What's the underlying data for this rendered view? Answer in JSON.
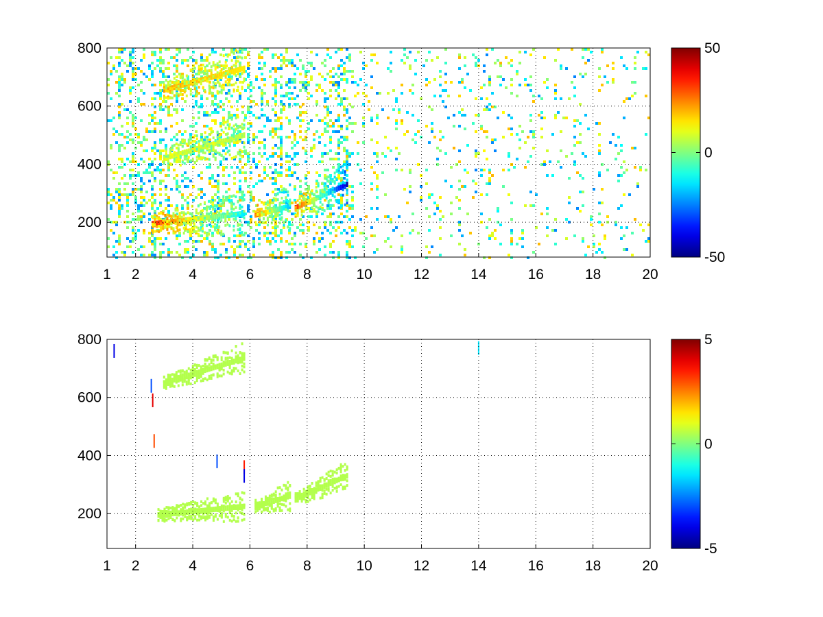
{
  "figure": {
    "background": "#ffffff"
  },
  "chart_data": [
    {
      "type": "heatmap",
      "title": "",
      "xlabel": "",
      "ylabel": "",
      "xlim": [
        1,
        20
      ],
      "ylim": [
        80,
        800
      ],
      "grid": true,
      "x_ticks": [
        {
          "value": 1,
          "label": "1"
        },
        {
          "value": 2,
          "label": "2"
        },
        {
          "value": 4,
          "label": "4"
        },
        {
          "value": 6,
          "label": "6"
        },
        {
          "value": 8,
          "label": "8"
        },
        {
          "value": 10,
          "label": "10"
        },
        {
          "value": 12,
          "label": "12"
        },
        {
          "value": 14,
          "label": "14"
        },
        {
          "value": 16,
          "label": "16"
        },
        {
          "value": 18,
          "label": "18"
        },
        {
          "value": 20,
          "label": "20"
        }
      ],
      "y_ticks": [
        {
          "value": 200,
          "label": "200"
        },
        {
          "value": 400,
          "label": "400"
        },
        {
          "value": 600,
          "label": "600"
        },
        {
          "value": 800,
          "label": "800"
        }
      ],
      "colorbar": {
        "colormap": "jet",
        "min": -50,
        "max": 50,
        "ticks": [
          {
            "value": 50,
            "label": "50"
          },
          {
            "value": 0,
            "label": "0"
          },
          {
            "value": -50,
            "label": "-50"
          }
        ]
      },
      "ridges": [
        {
          "x_start": 2.6,
          "x_end": 5.8,
          "y_start": 195,
          "y_end": 230,
          "value_start": 35,
          "value_end": -15
        },
        {
          "x_start": 6.2,
          "x_end": 7.4,
          "y_start": 225,
          "y_end": 255,
          "value_start": 30,
          "value_end": -20
        },
        {
          "x_start": 7.6,
          "x_end": 9.4,
          "y_start": 250,
          "y_end": 330,
          "value_start": 35,
          "value_end": -45
        },
        {
          "x_start": 3.0,
          "x_end": 5.8,
          "y_start": 655,
          "y_end": 730,
          "value_start": 22,
          "value_end": 14
        },
        {
          "x_start": 3.0,
          "x_end": 5.8,
          "y_start": 420,
          "y_end": 500,
          "value_start": 10,
          "value_end": 6
        }
      ],
      "background_noise": {
        "x_range": [
          1,
          20
        ],
        "density_low_x": 0.45,
        "density_high_x": 0.12,
        "value_range": [
          -25,
          20
        ]
      }
    },
    {
      "type": "heatmap",
      "title": "",
      "xlabel": "",
      "ylabel": "",
      "xlim": [
        1,
        20
      ],
      "ylim": [
        80,
        800
      ],
      "grid": true,
      "x_ticks": [
        {
          "value": 1,
          "label": "1"
        },
        {
          "value": 2,
          "label": "2"
        },
        {
          "value": 4,
          "label": "4"
        },
        {
          "value": 6,
          "label": "6"
        },
        {
          "value": 8,
          "label": "8"
        },
        {
          "value": 10,
          "label": "10"
        },
        {
          "value": 12,
          "label": "12"
        },
        {
          "value": 14,
          "label": "14"
        },
        {
          "value": 16,
          "label": "16"
        },
        {
          "value": 18,
          "label": "18"
        },
        {
          "value": 20,
          "label": "20"
        }
      ],
      "y_ticks": [
        {
          "value": 200,
          "label": "200"
        },
        {
          "value": 400,
          "label": "400"
        },
        {
          "value": 600,
          "label": "600"
        },
        {
          "value": 800,
          "label": "800"
        }
      ],
      "colorbar": {
        "colormap": "jet",
        "min": -5,
        "max": 5,
        "ticks": [
          {
            "value": 5,
            "label": "5"
          },
          {
            "value": 0,
            "label": "0"
          },
          {
            "value": -5,
            "label": "-5"
          }
        ]
      },
      "ridges": [
        {
          "x_start": 2.8,
          "x_end": 5.8,
          "y_start": 195,
          "y_end": 225,
          "value_start": 0.5,
          "value_end": 0.5
        },
        {
          "x_start": 6.2,
          "x_end": 7.4,
          "y_start": 225,
          "y_end": 260,
          "value_start": 0.5,
          "value_end": 0.5
        },
        {
          "x_start": 7.6,
          "x_end": 9.4,
          "y_start": 250,
          "y_end": 330,
          "value_start": 0.5,
          "value_end": 0.5
        },
        {
          "x_start": 3.0,
          "x_end": 5.8,
          "y_start": 650,
          "y_end": 735,
          "value_start": 0.5,
          "value_end": 0.5
        }
      ],
      "outliers": [
        {
          "x": 1.25,
          "y": 760,
          "value": -4
        },
        {
          "x": 2.55,
          "y": 640,
          "value": -3
        },
        {
          "x": 2.6,
          "y": 590,
          "value": 4
        },
        {
          "x": 2.65,
          "y": 450,
          "value": 3
        },
        {
          "x": 5.8,
          "y": 360,
          "value": 3.5
        },
        {
          "x": 5.8,
          "y": 330,
          "value": -4
        },
        {
          "x": 4.85,
          "y": 380,
          "value": -3
        },
        {
          "x": 14.0,
          "y": 770,
          "value": -1.5
        }
      ]
    }
  ]
}
